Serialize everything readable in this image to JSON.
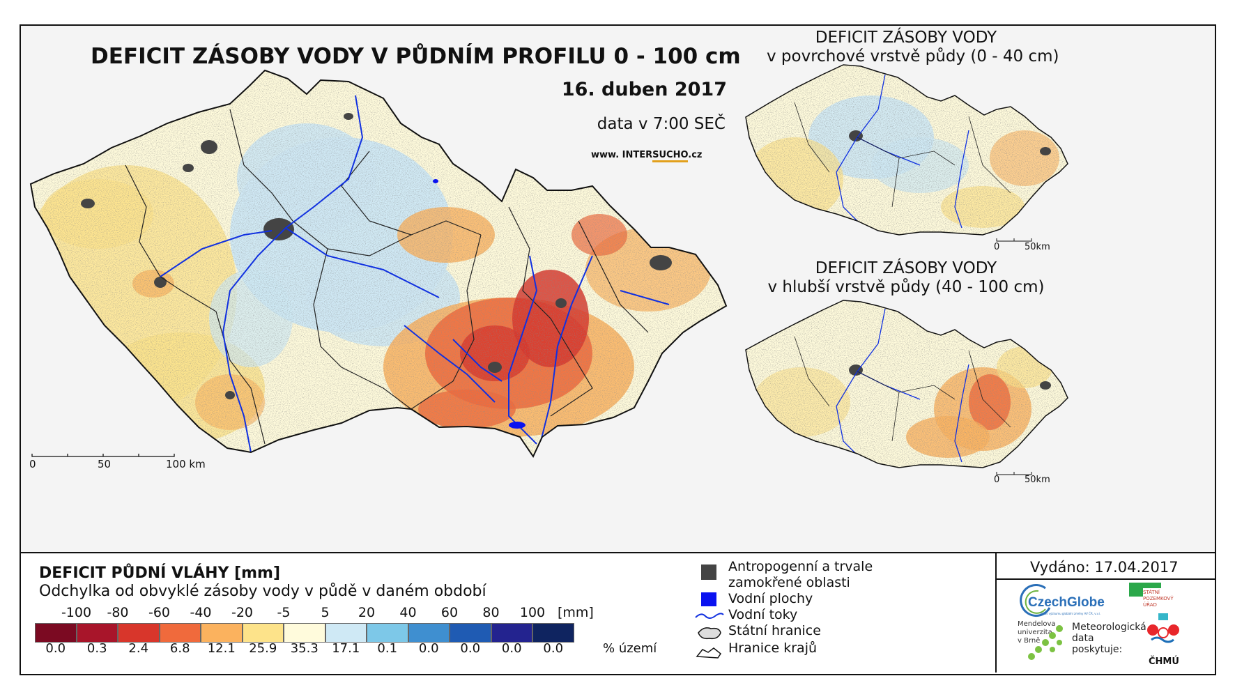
{
  "main_map": {
    "title": "DEFICIT ZÁSOBY VODY V PŮDNÍM PROFILU 0 - 100 cm",
    "date": "16. duben 2017",
    "time_note": "data v 7:00 SEČ",
    "url_prefix": "www. INTER",
    "url_highlight": "SUCHO",
    "url_suffix": ".cz",
    "scale_labels": [
      "0",
      "50",
      "100 km"
    ]
  },
  "inset_top": {
    "title_line1": "DEFICIT ZÁSOBY VODY",
    "title_line2": "v povrchové vrstvě půdy (0 - 40 cm)",
    "scale_labels": [
      "0",
      "50km"
    ]
  },
  "inset_bottom": {
    "title_line1": "DEFICIT ZÁSOBY VODY",
    "title_line2": "v hlubší vrstvě půdy (40 - 100 cm)",
    "scale_labels": [
      "0",
      "50km"
    ]
  },
  "legend": {
    "title": "DEFICIT PŮDNÍ VLÁHY [mm]",
    "subtitle": "Odchylka od obvyklé zásoby vody v půdě v daném období",
    "ticks": [
      "-100",
      "-80",
      "-60",
      "-40",
      "-20",
      "-5",
      "5",
      "20",
      "40",
      "60",
      "80",
      "100"
    ],
    "unit": "[mm]",
    "classes": [
      {
        "color": "#7b0a22",
        "percent": "0.0"
      },
      {
        "color": "#a8152a",
        "percent": "0.3"
      },
      {
        "color": "#d8362b",
        "percent": "2.4"
      },
      {
        "color": "#f06a3c",
        "percent": "6.8"
      },
      {
        "color": "#fbb25e",
        "percent": "12.1"
      },
      {
        "color": "#fde38a",
        "percent": "25.9"
      },
      {
        "color": "#fffbdc",
        "percent": "35.3"
      },
      {
        "color": "#cfe9f5",
        "percent": "17.1"
      },
      {
        "color": "#7dc8e8",
        "percent": "0.1"
      },
      {
        "color": "#3f8fd0",
        "percent": "0.0"
      },
      {
        "color": "#1f5bb3",
        "percent": "0.0"
      },
      {
        "color": "#23238f",
        "percent": "0.0"
      },
      {
        "color": "#0f2460",
        "percent": "0.0"
      }
    ],
    "percent_label": "% území"
  },
  "symbols": {
    "urban_line1": "Antropogenní a trvale",
    "urban_line2": "zamokřené oblasti",
    "water_bodies": "Vodní plochy",
    "rivers": "Vodní toky",
    "state_border": "Státní hranice",
    "region_border": "Hranice krajů",
    "colors": {
      "urban": "#444444",
      "water": "#0a12f0",
      "river": "#1030e0"
    }
  },
  "issued": {
    "text": "Vydáno: 17.04.2017"
  },
  "logos": {
    "czechglobe": "CzechGlobe",
    "czechglobe_sub": "Ústav výzkumu globální změny AV ČR, v.v.i.",
    "spu_line1": "STÁTNÍ",
    "spu_line2": "POZEMKOVÝ",
    "spu_line3": "ÚŘAD",
    "mendel_line1": "Mendelova",
    "mendel_line2": "univerzita",
    "mendel_line3": "v Brně",
    "meteo_line1": "Meteorologická",
    "meteo_line2": "data",
    "meteo_line3": "poskytuje:",
    "chmu": "ČHMÚ"
  }
}
